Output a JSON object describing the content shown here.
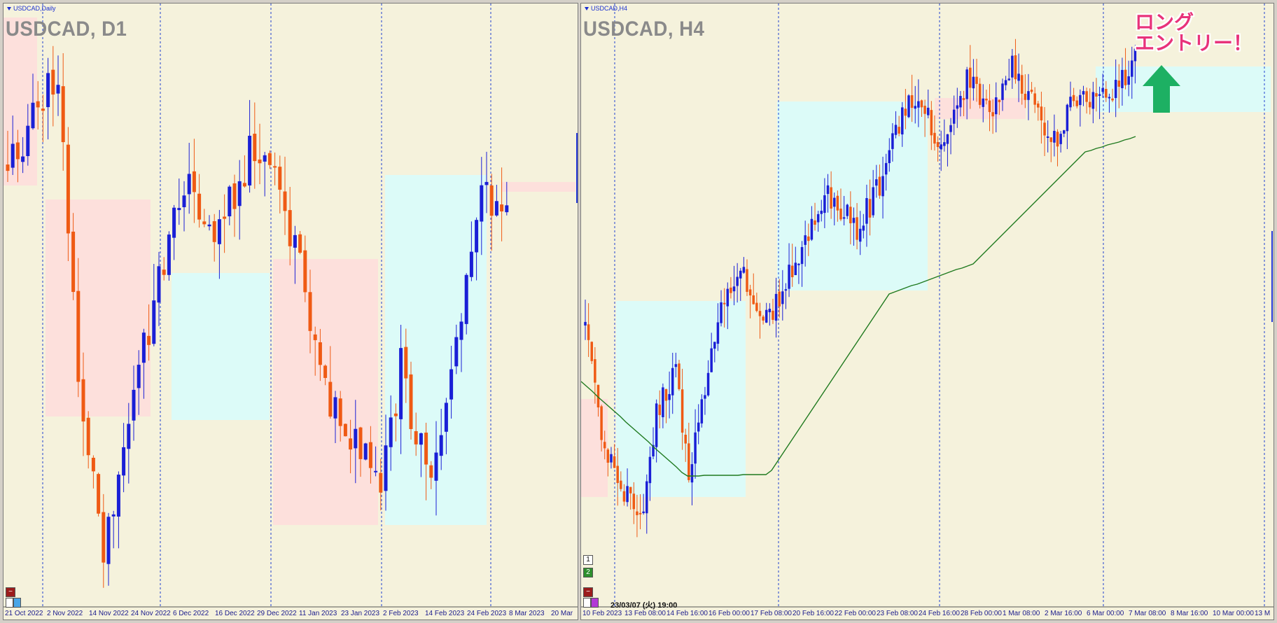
{
  "left": {
    "mini_title": "USDCAD,Daily",
    "title": "USDCAD, D1",
    "time_labels": [
      "21 Oct 2022",
      "2 Nov 2022",
      "14 Nov 2022",
      "24 Nov 2022",
      "6 Dec 2022",
      "16 Dec 2022",
      "29 Dec 2022",
      "11 Jan 2023",
      "23 Jan 2023",
      "2 Feb 2023",
      "14 Feb 2023",
      "24 Feb 2023",
      "8 Mar 2023",
      "20 Mar"
    ]
  },
  "right": {
    "mini_title": "USDCAD,H4",
    "title": "USDCAD, H4",
    "time_labels": [
      "10 Feb 2023",
      "13 Feb 08:00",
      "14 Feb 16:00",
      "16 Feb 00:00",
      "17 Feb 08:00",
      "20 Feb 16:00",
      "22 Feb 00:00",
      "23 Feb 08:00",
      "24 Feb 16:00",
      "28 Feb 00:00",
      "1 Mar 08:00",
      "2 Mar 16:00",
      "6 Mar 00:00",
      "7 Mar 08:00",
      "8 Mar 16:00",
      "10 Mar 00:00",
      "13 M"
    ],
    "timestamp": "23/03/07 (火) 19:00",
    "buttons": [
      "1",
      "2"
    ],
    "callout_line1": "ロング",
    "callout_line2": "エントリー！"
  },
  "colors": {
    "bull": "#1a1fd6",
    "bear": "#ef5a14",
    "bg": "#f5f2dc",
    "zone_pink": "#fde0dc",
    "zone_cyan": "#dcfbf8",
    "ma": "#1f7a1f",
    "arrow": "#1db063",
    "callout": "#e8337a"
  }
}
